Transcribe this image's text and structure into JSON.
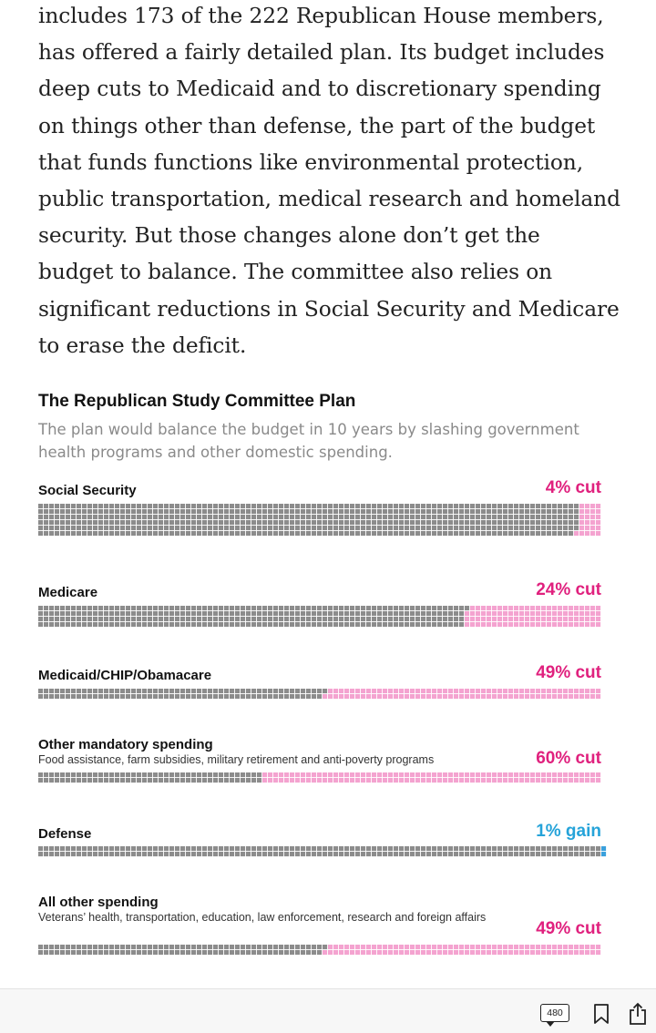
{
  "article": {
    "paragraph": "includes 173 of the 222 Republican House members, has offered a fairly detailed plan. Its budget includes deep cuts to Medicaid and to discretionary spending on things other than defense, the part of the budget that funds functions like environmental protection, public transportation, medical research and homeland security. But those changes alone don’t get the budget to balance. The committee also relies on significant reductions in Social Security and Medicare to erase the deficit."
  },
  "graphic": {
    "title": "The Republican Study Committee Plan",
    "subtitle": "The plan would balance the budget in 10 years by slashing government health programs and other domestic spending."
  },
  "chart_data": {
    "type": "waffle",
    "title": "The Republican Study Committee Plan",
    "subtitle": "The plan would balance the budget in 10 years by slashing government health programs and other domestic spending.",
    "colors": {
      "remaining": "#8c8c8c",
      "cut": "#f4a3d0",
      "gain": "#3aa0dc",
      "cut_label": "#e0217e",
      "gain_label": "#25a3d9"
    },
    "series": [
      {
        "name": "Social Security",
        "note": "",
        "label": "4% cut",
        "direction": "cut",
        "percent": 4,
        "rows": 6
      },
      {
        "name": "Medicare",
        "note": "",
        "label": "24% cut",
        "direction": "cut",
        "percent": 24,
        "rows": 4
      },
      {
        "name": "Medicaid/CHIP/Obamacare",
        "note": "",
        "label": "49% cut",
        "direction": "cut",
        "percent": 49,
        "rows": 2
      },
      {
        "name": "Other mandatory spending",
        "note": "Food assistance, farm subsidies, military retirement and anti-poverty programs",
        "label": "60% cut",
        "direction": "cut",
        "percent": 60,
        "rows": 2
      },
      {
        "name": "Defense",
        "note": "",
        "label": "1% gain",
        "direction": "gain",
        "percent": 1,
        "rows": 2
      },
      {
        "name": "All other spending",
        "note": "Veterans’ health, transportation, education, law enforcement, research and foreign affairs",
        "label": "49% cut",
        "direction": "cut",
        "percent": 49,
        "rows": 2
      }
    ]
  },
  "toolbar": {
    "comment_count": "480",
    "comment_icon": "comment-bubble-icon",
    "bookmark_icon": "bookmark-icon",
    "share_icon": "share-icon"
  }
}
